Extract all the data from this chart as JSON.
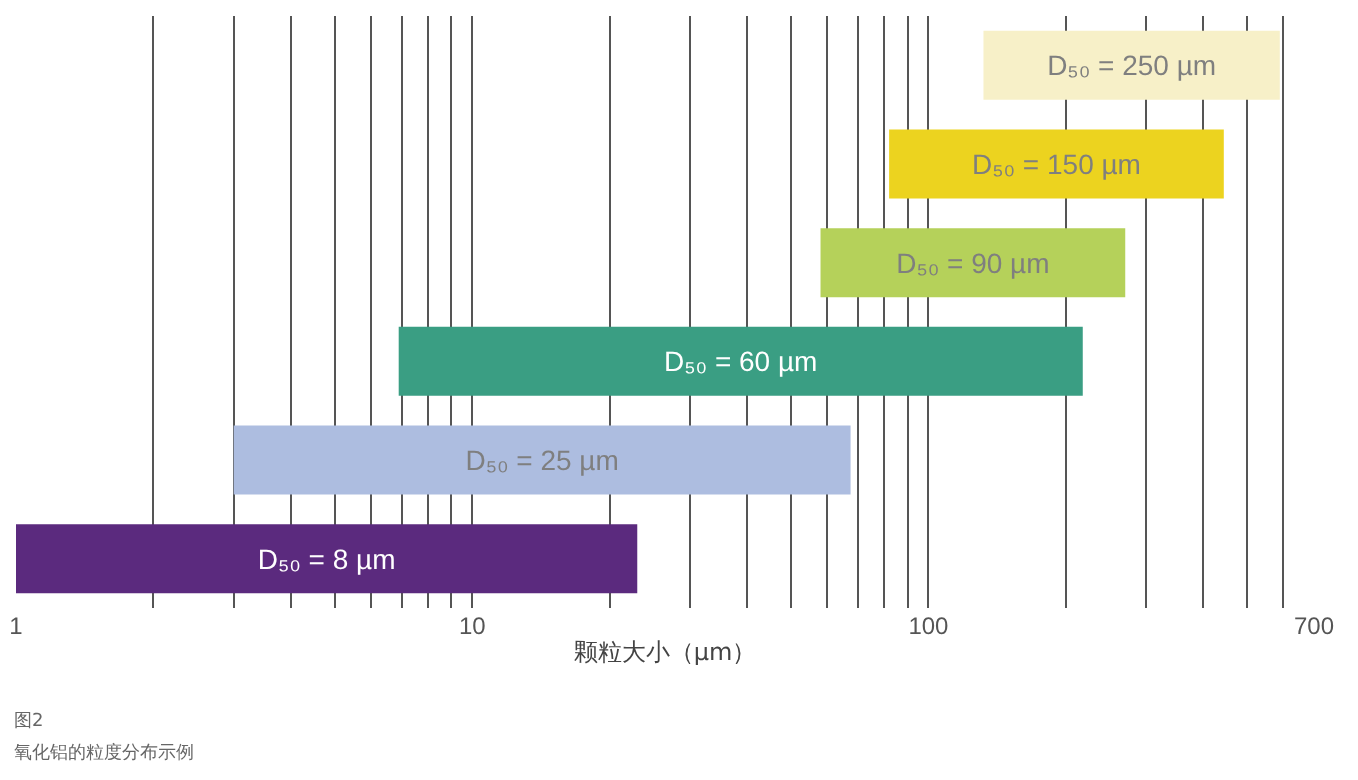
{
  "chart_data": {
    "type": "bar",
    "orientation": "horizontal",
    "log": "x",
    "xlabel": "颗粒大小（µm）",
    "categories": [
      "D₅₀ = 250 µm",
      "D₅₀ = 150 µm",
      "D₅₀ = 90 µm",
      "D₅₀ = 60 µm",
      "D₅₀ = 25 µm",
      "D₅₀ = 8 µm"
    ],
    "base": [
      132,
      82,
      58,
      6.9,
      3,
      1
    ],
    "values": [
      457,
      362,
      212,
      211,
      64.5,
      22
    ],
    "colors": [
      "#f7f0c8",
      "#ecd31f",
      "#b5d15a",
      "#3a9e83",
      "#adbde0",
      "#5b2a7e"
    ],
    "xlim": [
      1,
      700
    ],
    "xticks": [
      1,
      {
        "value": 2,
        "label": null
      },
      {
        "value": 3,
        "label": null
      },
      {
        "value": 4,
        "label": null
      },
      {
        "value": 5,
        "label": null
      },
      {
        "value": 6,
        "label": null
      },
      {
        "value": 7,
        "label": null
      },
      {
        "value": 8,
        "label": null
      },
      {
        "value": 9,
        "label": null
      },
      10,
      {
        "value": 20,
        "label": null
      },
      {
        "value": 30,
        "label": null
      },
      {
        "value": 40,
        "label": null
      },
      {
        "value": 50,
        "label": null
      },
      {
        "value": 60,
        "label": null
      },
      {
        "value": 70,
        "label": null
      },
      {
        "value": 80,
        "label": null
      },
      {
        "value": 90,
        "label": null
      },
      100,
      {
        "value": 200,
        "label": null
      },
      {
        "value": 300,
        "label": null
      },
      {
        "value": 400,
        "label": null
      },
      {
        "value": 500,
        "label": null
      },
      {
        "value": 600,
        "label": null
      },
      700
    ],
    "grid": "x",
    "tick_labels": "x",
    "legend": false,
    "annotations": [
      "图2",
      "氧化铝的粒度分布示例"
    ]
  }
}
